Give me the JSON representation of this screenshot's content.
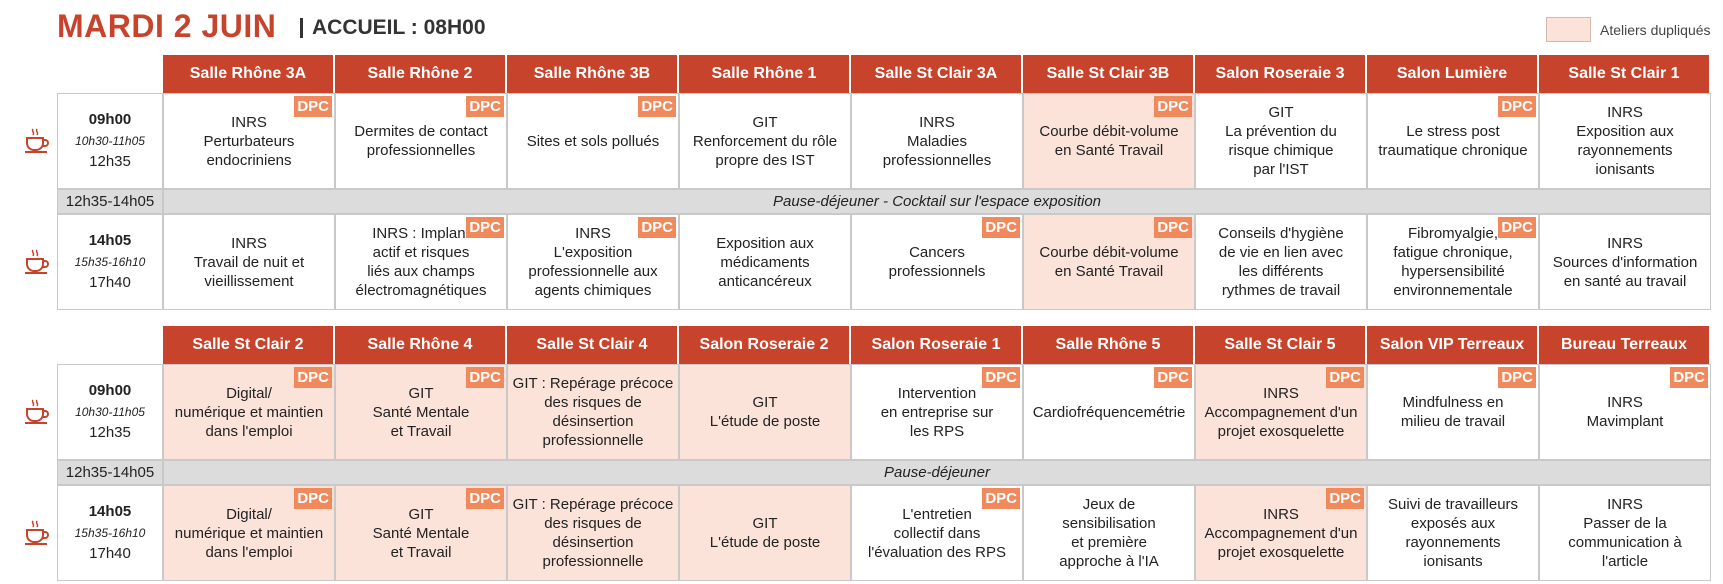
{
  "header": {
    "title": "MARDI 2 JUIN",
    "subtitle": "ACCUEIL : 08H00",
    "legend": "Ateliers dupliqués"
  },
  "blocks": [
    {
      "rooms": [
        "Salle Rhône 3A",
        "Salle Rhône 2",
        "Salle Rhône 3B",
        "Salle Rhône 1",
        "Salle St Clair 3A",
        "Salle St Clair 3B",
        "Salon Roseraie 3",
        "Salon Lumière",
        "Salle St Clair 1"
      ],
      "morning": {
        "start": "09h00",
        "break": "10h30-11h05",
        "end": "12h35",
        "cells": [
          {
            "lines": [
              "INRS",
              "Perturbateurs",
              "endocriniens"
            ],
            "badge": "DPC",
            "duplicated": false
          },
          {
            "lines": [
              "Dermites de contact",
              "professionnelles"
            ],
            "badge": "DPC",
            "duplicated": false
          },
          {
            "lines": [
              "Sites et sols pollués"
            ],
            "badge": "DPC",
            "duplicated": false
          },
          {
            "lines": [
              "GIT",
              "Renforcement du rôle",
              "propre des IST"
            ],
            "duplicated": false
          },
          {
            "lines": [
              "INRS",
              "Maladies",
              "professionnelles"
            ],
            "duplicated": false
          },
          {
            "lines": [
              "Courbe débit-volume",
              "en Santé Travail"
            ],
            "badge": "DPC",
            "duplicated": true
          },
          {
            "lines": [
              "GIT",
              "La prévention du",
              "risque chimique",
              "par l'IST"
            ],
            "duplicated": false
          },
          {
            "lines": [
              "Le stress post",
              "traumatique chronique"
            ],
            "badge": "DPC",
            "duplicated": false
          },
          {
            "lines": [
              "INRS",
              "Exposition aux",
              "rayonnements",
              "ionisants"
            ],
            "duplicated": false
          }
        ]
      },
      "pause": {
        "time": "12h35-14h05",
        "label": "Pause-déjeuner - Cocktail sur l'espace exposition"
      },
      "afternoon": {
        "start": "14h05",
        "break": "15h35-16h10",
        "end": "17h40",
        "cells": [
          {
            "lines": [
              "INRS",
              "Travail de nuit et",
              "vieillissement"
            ],
            "duplicated": false
          },
          {
            "lines": [
              "INRS : Implant",
              "actif et risques",
              "liés aux champs",
              "électromagnétiques"
            ],
            "badge": "DPC",
            "duplicated": false
          },
          {
            "lines": [
              "INRS",
              "L'exposition",
              "professionnelle aux",
              "agents chimiques"
            ],
            "badge": "DPC",
            "duplicated": false
          },
          {
            "lines": [
              "Exposition aux",
              "médicaments",
              "anticancéreux"
            ],
            "duplicated": false
          },
          {
            "lines": [
              "Cancers",
              "professionnels"
            ],
            "badge": "DPC",
            "duplicated": false
          },
          {
            "lines": [
              "Courbe débit-volume",
              "en Santé Travail"
            ],
            "badge": "DPC",
            "duplicated": true
          },
          {
            "lines": [
              "Conseils d'hygiène",
              "de vie en lien avec",
              "les différents",
              "rythmes de travail"
            ],
            "duplicated": false
          },
          {
            "lines": [
              "Fibromyalgie,",
              "fatigue chronique,",
              "hypersensibilité",
              "environnementale"
            ],
            "badge": "DPC",
            "duplicated": false
          },
          {
            "lines": [
              "INRS",
              "Sources d'information",
              "en santé au travail"
            ],
            "duplicated": false
          }
        ]
      }
    },
    {
      "rooms": [
        "Salle St Clair 2",
        "Salle Rhône 4",
        "Salle St Clair 4",
        "Salon Roseraie 2",
        "Salon Roseraie 1",
        "Salle Rhône 5",
        "Salle St Clair 5",
        "Salon VIP Terreaux",
        "Bureau Terreaux"
      ],
      "morning": {
        "start": "09h00",
        "break": "10h30-11h05",
        "end": "12h35",
        "cells": [
          {
            "lines": [
              "Digital/",
              "numérique et maintien",
              "dans l'emploi"
            ],
            "badge": "DPC",
            "duplicated": true
          },
          {
            "lines": [
              "GIT",
              "Santé Mentale",
              "et Travail"
            ],
            "badge": "DPC",
            "duplicated": true
          },
          {
            "lines": [
              "GIT : Repérage précoce",
              "des risques de",
              "désinsertion",
              "professionnelle"
            ],
            "duplicated": true
          },
          {
            "lines": [
              "GIT",
              "L'étude de poste"
            ],
            "duplicated": true
          },
          {
            "lines": [
              "Intervention",
              "en entreprise sur",
              "les RPS"
            ],
            "badge": "DPC",
            "duplicated": false
          },
          {
            "lines": [
              "Cardiofréquencemétrie"
            ],
            "badge": "DPC",
            "duplicated": false
          },
          {
            "lines": [
              "INRS",
              "Accompagnement d'un",
              "projet exosquelette"
            ],
            "badge": "DPC",
            "duplicated": true
          },
          {
            "lines": [
              "Mindfulness en",
              "milieu de travail"
            ],
            "badge": "DPC",
            "duplicated": false
          },
          {
            "lines": [
              "INRS",
              "Mavimplant"
            ],
            "badge": "DPC",
            "duplicated": false
          }
        ]
      },
      "pause": {
        "time": "12h35-14h05",
        "label": "Pause-déjeuner"
      },
      "afternoon": {
        "start": "14h05",
        "break": "15h35-16h10",
        "end": "17h40",
        "cells": [
          {
            "lines": [
              "Digital/",
              "numérique et maintien",
              "dans l'emploi"
            ],
            "badge": "DPC",
            "duplicated": true
          },
          {
            "lines": [
              "GIT",
              "Santé Mentale",
              "et Travail"
            ],
            "badge": "DPC",
            "duplicated": true
          },
          {
            "lines": [
              "GIT : Repérage précoce",
              "des risques de",
              "désinsertion",
              "professionnelle"
            ],
            "duplicated": true
          },
          {
            "lines": [
              "GIT",
              "L'étude de poste"
            ],
            "duplicated": true
          },
          {
            "lines": [
              "L'entretien",
              "collectif dans",
              "l'évaluation des RPS"
            ],
            "badge": "DPC",
            "duplicated": false
          },
          {
            "lines": [
              "Jeux de",
              "sensibilisation",
              "et première",
              "approche à l'IA"
            ],
            "duplicated": false
          },
          {
            "lines": [
              "INRS",
              "Accompagnement d'un",
              "projet exosquelette"
            ],
            "badge": "DPC",
            "duplicated": true
          },
          {
            "lines": [
              "Suivi de travailleurs",
              "exposés aux",
              "rayonnements",
              "ionisants"
            ],
            "duplicated": false
          },
          {
            "lines": [
              "INRS",
              "Passer de la",
              "communication à",
              "l'article"
            ],
            "duplicated": false
          }
        ]
      }
    }
  ]
}
